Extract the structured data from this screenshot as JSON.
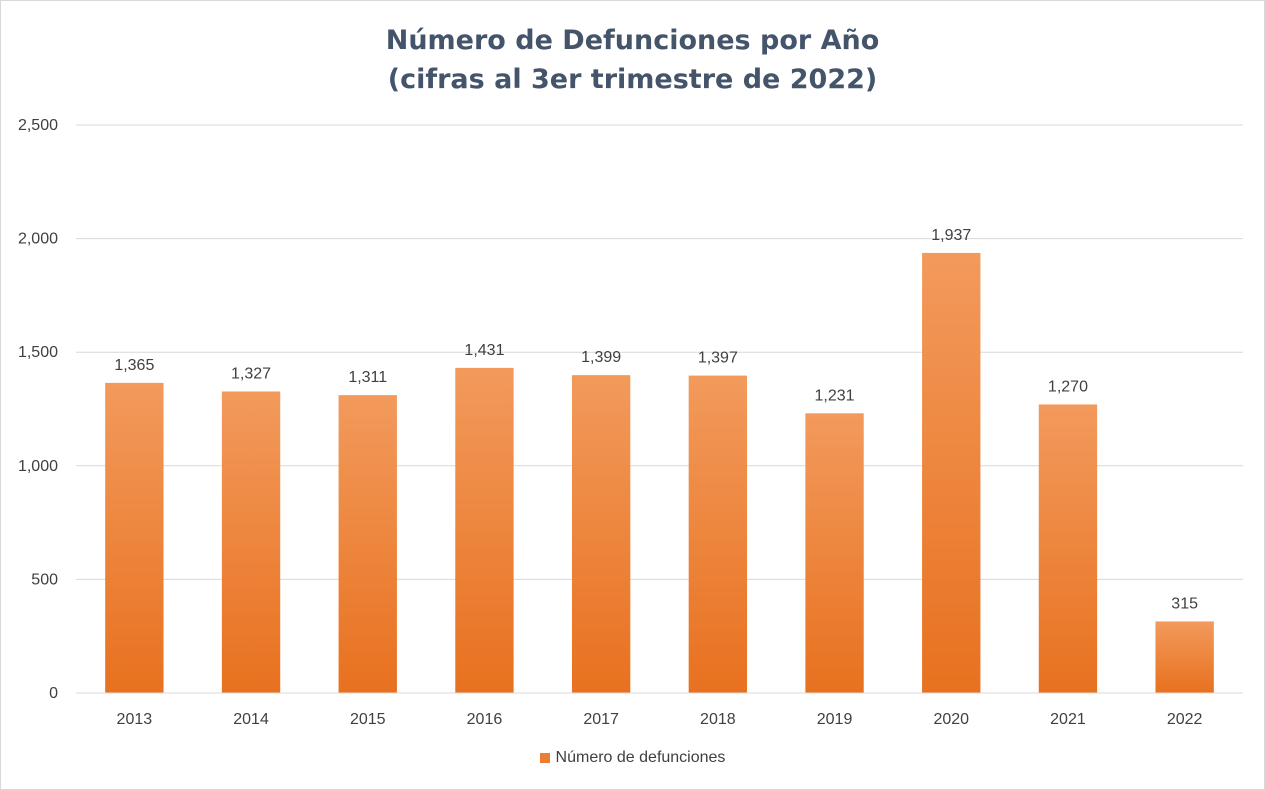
{
  "chart_data": {
    "type": "bar",
    "title": "Número de Defunciones por Año",
    "subtitle": "(cifras al 3er trimestre de 2022)",
    "categories": [
      "2013",
      "2014",
      "2015",
      "2016",
      "2017",
      "2018",
      "2019",
      "2020",
      "2021",
      "2022"
    ],
    "series": [
      {
        "name": "Número de defunciones",
        "values": [
          1365,
          1327,
          1311,
          1431,
          1399,
          1397,
          1231,
          1937,
          1270,
          315
        ],
        "labels": [
          "1,365",
          "1,327",
          "1,311",
          "1,431",
          "1,399",
          "1,397",
          "1,231",
          "1,937",
          "1,270",
          "315"
        ]
      }
    ],
    "ylim": [
      0,
      2500
    ],
    "yticks": [
      0,
      500,
      1000,
      1500,
      2000,
      2500
    ],
    "ytick_labels": [
      "0",
      "500",
      "1,000",
      "1,500",
      "2,000",
      "2,500"
    ],
    "grid": true,
    "legend_position": "bottom",
    "colors": {
      "bar_top": "#f29a5c",
      "bar_bottom": "#e8711f",
      "grid": "#d9d9d9",
      "title": "#44546a",
      "text": "#404040",
      "legend_swatch": "#ed7d31"
    }
  }
}
